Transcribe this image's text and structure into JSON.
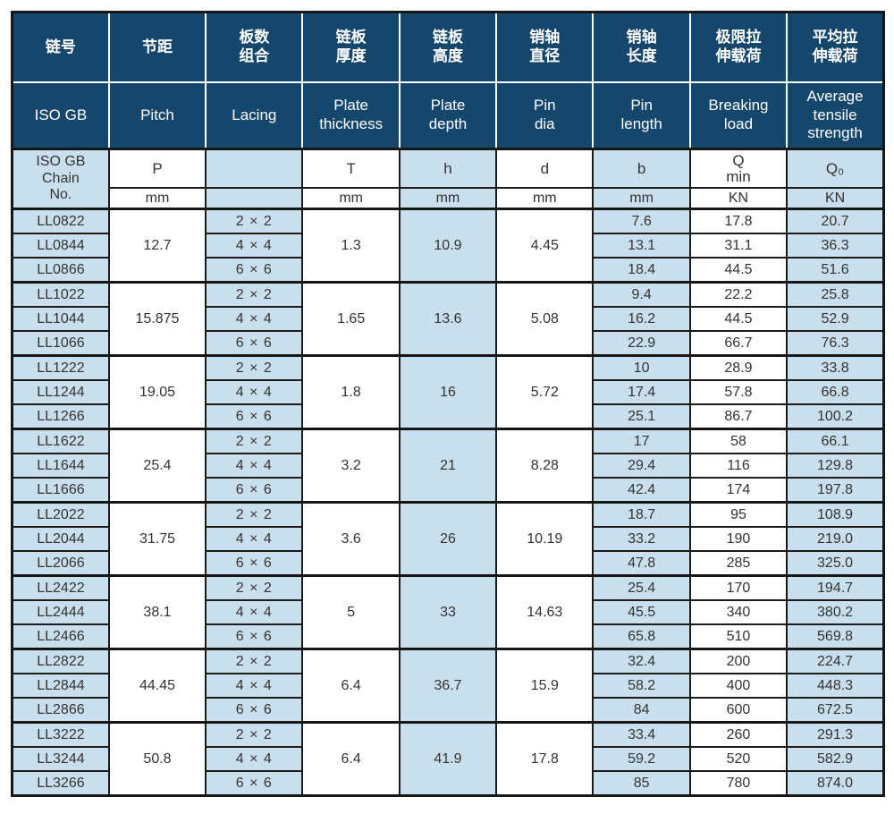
{
  "colors": {
    "header_bg": "#15466b",
    "stripe_bg": "#c9dfee",
    "border": "#1a1a1a",
    "header_text": "#ffffff",
    "body_text": "#333333"
  },
  "table": {
    "header_cn": [
      "链号",
      "节距",
      "板数\n组合",
      "链板\n厚度",
      "链板\n高度",
      "销轴\n直径",
      "销轴\n长度",
      "极限拉\n伸载荷",
      "平均拉\n伸载荷"
    ],
    "header_en": [
      "ISO GB",
      "Pitch",
      "Lacing",
      "Plate\nthickness",
      "Plate\ndepth",
      "Pin\ndia",
      "Pin\nlength",
      "Breaking\nload",
      "Average\ntensile\nstrength"
    ],
    "symbols": {
      "chain": "ISO GB\nChain\nNo.",
      "pitch": "P",
      "thickness": "T",
      "depth": "h",
      "dia": "d",
      "length": "b",
      "breaking": "Q\nmin",
      "average": "Q₀"
    },
    "units": {
      "pitch": "mm",
      "thickness": "mm",
      "depth": "mm",
      "dia": "mm",
      "length": "mm",
      "breaking": "KN",
      "average": "KN"
    },
    "groups": [
      {
        "pitch": "12.7",
        "thickness": "1.3",
        "depth": "10.9",
        "dia": "4.45",
        "rows": [
          {
            "chain": "LL0822",
            "lacing": "2 × 2",
            "length": "7.6",
            "breaking": "17.8",
            "average": "20.7"
          },
          {
            "chain": "LL0844",
            "lacing": "4 × 4",
            "length": "13.1",
            "breaking": "31.1",
            "average": "36.3"
          },
          {
            "chain": "LL0866",
            "lacing": "6 × 6",
            "length": "18.4",
            "breaking": "44.5",
            "average": "51.6"
          }
        ]
      },
      {
        "pitch": "15.875",
        "thickness": "1.65",
        "depth": "13.6",
        "dia": "5.08",
        "rows": [
          {
            "chain": "LL1022",
            "lacing": "2 × 2",
            "length": "9.4",
            "breaking": "22.2",
            "average": "25.8"
          },
          {
            "chain": "LL1044",
            "lacing": "4 × 4",
            "length": "16.2",
            "breaking": "44.5",
            "average": "52.9"
          },
          {
            "chain": "LL1066",
            "lacing": "6 × 6",
            "length": "22.9",
            "breaking": "66.7",
            "average": "76.3"
          }
        ]
      },
      {
        "pitch": "19.05",
        "thickness": "1.8",
        "depth": "16",
        "dia": "5.72",
        "rows": [
          {
            "chain": "LL1222",
            "lacing": "2 × 2",
            "length": "10",
            "breaking": "28.9",
            "average": "33.8"
          },
          {
            "chain": "LL1244",
            "lacing": "4 × 4",
            "length": "17.4",
            "breaking": "57.8",
            "average": "66.8"
          },
          {
            "chain": "LL1266",
            "lacing": "6 × 6",
            "length": "25.1",
            "breaking": "86.7",
            "average": "100.2"
          }
        ]
      },
      {
        "pitch": "25.4",
        "thickness": "3.2",
        "depth": "21",
        "dia": "8.28",
        "rows": [
          {
            "chain": "LL1622",
            "lacing": "2 × 2",
            "length": "17",
            "breaking": "58",
            "average": "66.1"
          },
          {
            "chain": "LL1644",
            "lacing": "4 × 4",
            "length": "29.4",
            "breaking": "116",
            "average": "129.8"
          },
          {
            "chain": "LL1666",
            "lacing": "6 × 6",
            "length": "42.4",
            "breaking": "174",
            "average": "197.8"
          }
        ]
      },
      {
        "pitch": "31.75",
        "thickness": "3.6",
        "depth": "26",
        "dia": "10.19",
        "rows": [
          {
            "chain": "LL2022",
            "lacing": "2 × 2",
            "length": "18.7",
            "breaking": "95",
            "average": "108.9"
          },
          {
            "chain": "LL2044",
            "lacing": "4 × 4",
            "length": "33.2",
            "breaking": "190",
            "average": "219.0"
          },
          {
            "chain": "LL2066",
            "lacing": "6 × 6",
            "length": "47.8",
            "breaking": "285",
            "average": "325.0"
          }
        ]
      },
      {
        "pitch": "38.1",
        "thickness": "5",
        "depth": "33",
        "dia": "14.63",
        "rows": [
          {
            "chain": "LL2422",
            "lacing": "2 × 2",
            "length": "25.4",
            "breaking": "170",
            "average": "194.7"
          },
          {
            "chain": "LL2444",
            "lacing": "4 × 4",
            "length": "45.5",
            "breaking": "340",
            "average": "380.2"
          },
          {
            "chain": "LL2466",
            "lacing": "6 × 6",
            "length": "65.8",
            "breaking": "510",
            "average": "569.8"
          }
        ]
      },
      {
        "pitch": "44.45",
        "thickness": "6.4",
        "depth": "36.7",
        "dia": "15.9",
        "rows": [
          {
            "chain": "LL2822",
            "lacing": "2 × 2",
            "length": "32.4",
            "breaking": "200",
            "average": "224.7"
          },
          {
            "chain": "LL2844",
            "lacing": "4 × 4",
            "length": "58.2",
            "breaking": "400",
            "average": "448.3"
          },
          {
            "chain": "LL2866",
            "lacing": "6 × 6",
            "length": "84",
            "breaking": "600",
            "average": "672.5"
          }
        ]
      },
      {
        "pitch": "50.8",
        "thickness": "6.4",
        "depth": "41.9",
        "dia": "17.8",
        "rows": [
          {
            "chain": "LL3222",
            "lacing": "2 × 2",
            "length": "33.4",
            "breaking": "260",
            "average": "291.3"
          },
          {
            "chain": "LL3244",
            "lacing": "4 × 4",
            "length": "59.2",
            "breaking": "520",
            "average": "582.9"
          },
          {
            "chain": "LL3266",
            "lacing": "6 × 6",
            "length": "85",
            "breaking": "780",
            "average": "874.0"
          }
        ]
      }
    ]
  }
}
